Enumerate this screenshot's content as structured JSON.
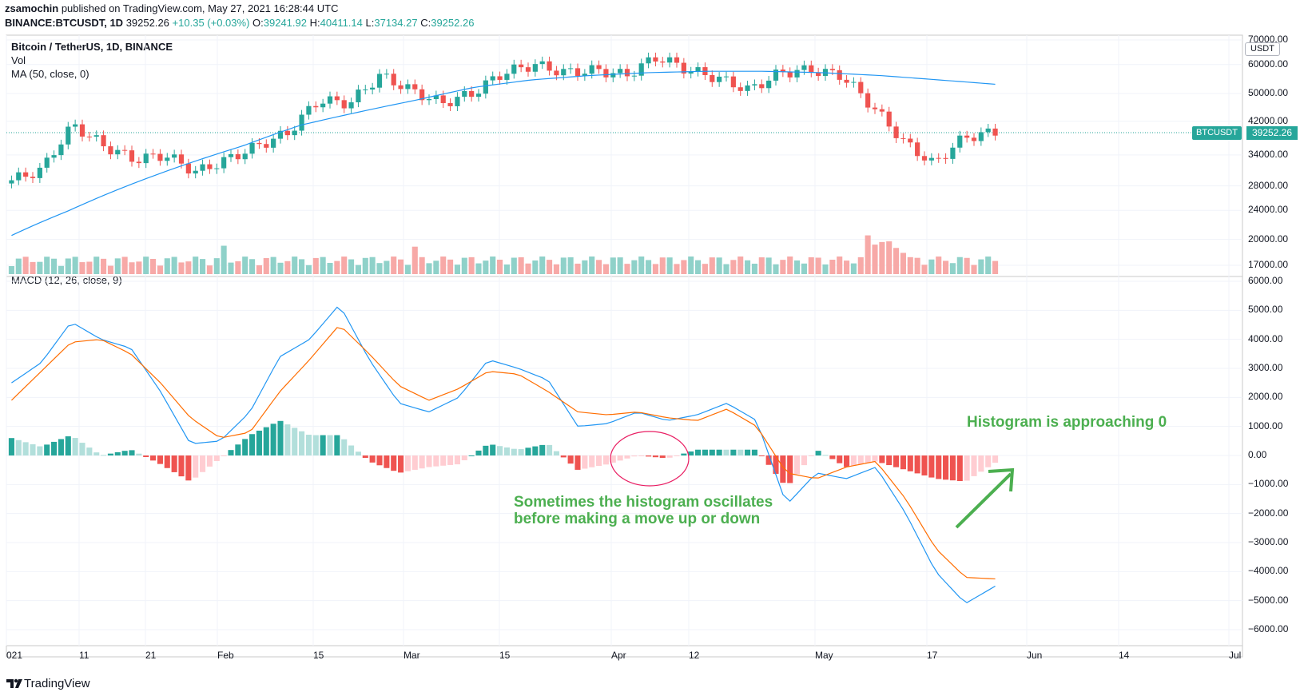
{
  "header": {
    "author": "zsamochin",
    "published": "published on TradingView.com, May 27, 2021 16:28:44 UTC",
    "symbol": "BINANCE:BTCUSDT, 1D",
    "last": "39252.26",
    "change": "+10.35 (+0.03%)",
    "o_label": "O:",
    "o": "39241.92",
    "h_label": "H:",
    "h": "40411.14",
    "l_label": "L:",
    "l": "37134.27",
    "c_label": "C:",
    "c": "39252.26"
  },
  "legend": {
    "title": "Bitcoin / TetherUS, 1D, BINANCE",
    "vol": "Vol",
    "ma": "MA (50, close, 0)",
    "macd": "MACD (12, 26, close, 9)"
  },
  "price_axis": {
    "currency": "USDT",
    "ticks": [
      "70000.00",
      "60000.00",
      "50000.00",
      "42000.00",
      "34000.00",
      "28000.00",
      "24000.00",
      "20000.00",
      "17000.00"
    ],
    "symbol_tag": "BTCUSDT",
    "price_tag": "39252.26"
  },
  "macd_axis": {
    "ticks": [
      "6000.00",
      "5000.00",
      "4000.00",
      "3000.00",
      "2000.00",
      "1000.00",
      "0.00",
      "−1000.00",
      "−2000.00",
      "−3000.00",
      "−4000.00",
      "−5000.00",
      "−6000.00"
    ]
  },
  "time_axis": {
    "ticks": [
      "021",
      "11",
      "21",
      "Feb",
      "15",
      "Mar",
      "15",
      "Apr",
      "12",
      "May",
      "17",
      "Jun",
      "14",
      "Jul"
    ]
  },
  "annotations": {
    "approaching": "Histogram is approaching 0",
    "oscillate_1": "Sometimes the histogram oscillates",
    "oscillate_2": "before making a move up or down"
  },
  "footer": {
    "brand": "TradingView"
  },
  "colors": {
    "up": "#26a69a",
    "down": "#ef5350",
    "ma": "#2196f3",
    "signal": "#ff6d00",
    "annotation": "#4caf50"
  },
  "chart_data": [
    {
      "type": "line",
      "title": "Bitcoin / TetherUS, 1D, BINANCE",
      "panel": "price",
      "scale": "log",
      "x_ticks": [
        "021",
        "11",
        "21",
        "Feb",
        "15",
        "Mar",
        "15",
        "Apr",
        "12",
        "May",
        "17",
        "Jun",
        "14",
        "Jul"
      ],
      "ylim": [
        17000,
        70000
      ],
      "series": [
        {
          "name": "MA (50, close, 0)",
          "values": [
            20500,
            24000,
            28000,
            32000,
            36000,
            41000,
            44500,
            48000,
            52000,
            54500,
            56000,
            57000,
            57500,
            57500,
            57000,
            56000,
            54500,
            53000
          ]
        },
        {
          "name": "Close",
          "values": [
            29000,
            31000,
            41000,
            36000,
            33000,
            34000,
            30500,
            33000,
            36000,
            39000,
            48000,
            47000,
            56000,
            51000,
            47000,
            50000,
            57000,
            60000,
            57000,
            58000,
            56000,
            63000,
            58000,
            55000,
            51000,
            57000,
            58000,
            56000,
            46000,
            37000,
            32000,
            38000,
            39252.26
          ]
        }
      ]
    },
    {
      "type": "bar",
      "title": "Vol",
      "panel": "volume",
      "note": "relative volume bars, spike near May 19 2021"
    },
    {
      "type": "line",
      "title": "MACD (12, 26, close, 9)",
      "panel": "macd",
      "ylim": [
        -6000,
        6000
      ],
      "series": [
        {
          "name": "MACD",
          "values": [
            2500,
            3200,
            4600,
            4000,
            3700,
            2200,
            400,
            500,
            1500,
            3400,
            4000,
            5200,
            3300,
            1800,
            1500,
            2000,
            3300,
            3000,
            2600,
            1000,
            1100,
            1500,
            1200,
            1400,
            1800,
            1200,
            -1700,
            -600,
            -800,
            -400,
            -2000,
            -4000,
            -5100,
            -4500
          ]
        },
        {
          "name": "Signal",
          "values": [
            1900,
            2900,
            3900,
            4000,
            3500,
            2500,
            1300,
            600,
            800,
            2200,
            3300,
            4500,
            3500,
            2400,
            1900,
            2300,
            2900,
            2800,
            2200,
            1500,
            1400,
            1500,
            1300,
            1200,
            1600,
            1000,
            -600,
            -800,
            -400,
            -200,
            -1500,
            -3200,
            -4200,
            -4250
          ]
        },
        {
          "name": "Histogram",
          "values": [
            600,
            1000,
            1000,
            -100,
            -900,
            -1100,
            -600,
            400,
            1000,
            900,
            1000,
            -800,
            -1200,
            -600,
            400,
            800,
            200,
            -800,
            -900,
            100,
            50,
            -150,
            300,
            400,
            -1200,
            -1400,
            -300,
            400,
            500,
            -600,
            -1600,
            -1800,
            -1700,
            -300
          ]
        }
      ]
    }
  ]
}
